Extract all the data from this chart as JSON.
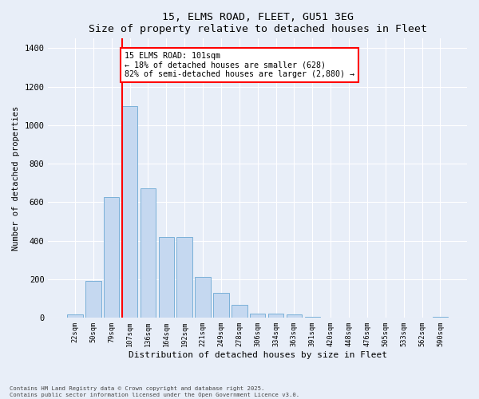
{
  "title1": "15, ELMS ROAD, FLEET, GU51 3EG",
  "title2": "Size of property relative to detached houses in Fleet",
  "xlabel": "Distribution of detached houses by size in Fleet",
  "ylabel": "Number of detached properties",
  "categories": [
    "22sqm",
    "50sqm",
    "79sqm",
    "107sqm",
    "136sqm",
    "164sqm",
    "192sqm",
    "221sqm",
    "249sqm",
    "278sqm",
    "306sqm",
    "334sqm",
    "363sqm",
    "391sqm",
    "420sqm",
    "448sqm",
    "476sqm",
    "505sqm",
    "533sqm",
    "562sqm",
    "590sqm"
  ],
  "values": [
    15,
    190,
    628,
    1100,
    670,
    420,
    420,
    210,
    130,
    65,
    20,
    20,
    15,
    5,
    0,
    0,
    0,
    0,
    0,
    0,
    5
  ],
  "bar_color": "#c5d8f0",
  "bar_edge_color": "#7ab0d8",
  "vline_color": "red",
  "annotation_text": "15 ELMS ROAD: 101sqm\n← 18% of detached houses are smaller (628)\n82% of semi-detached houses are larger (2,880) →",
  "annotation_box_color": "white",
  "annotation_box_edge": "red",
  "ylim": [
    0,
    1450
  ],
  "yticks": [
    0,
    200,
    400,
    600,
    800,
    1000,
    1200,
    1400
  ],
  "footer1": "Contains HM Land Registry data © Crown copyright and database right 2025.",
  "footer2": "Contains public sector information licensed under the Open Government Licence v3.0.",
  "bg_color": "#e8eef8",
  "plot_bg_color": "#e8eef8"
}
